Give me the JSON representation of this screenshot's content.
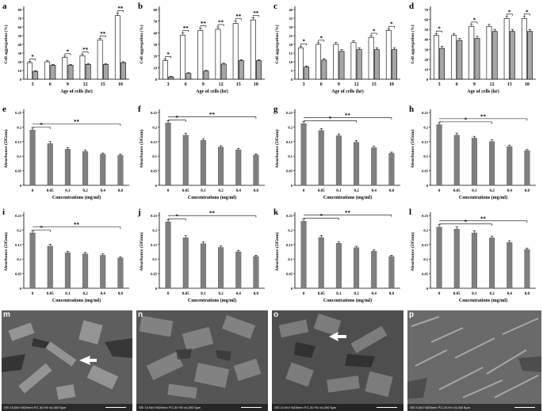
{
  "colors": {
    "open_bar": "#ffffff",
    "shaded_bar": "#a6a6a6",
    "mark_bar": "#7f7f7f",
    "axis": "#000000"
  },
  "chart_data": [
    {
      "panel": "a",
      "type": "bar",
      "ylabel": "Cell aggregation (%)",
      "xlabel": "Age of cells (hr)",
      "categories": [
        "3",
        "6",
        "9",
        "12",
        "15",
        "18"
      ],
      "ylim": [
        0,
        80
      ],
      "yticks": [
        0,
        10,
        20,
        30,
        40,
        50,
        60,
        70,
        80
      ],
      "series": [
        {
          "values": [
            19,
            20,
            25,
            27,
            45,
            73
          ],
          "errors": [
            1.5,
            1.2,
            1.5,
            1.5,
            2,
            3
          ]
        },
        {
          "values": [
            9,
            16,
            16,
            17,
            17,
            19
          ],
          "errors": [
            0.8,
            1,
            1,
            1,
            1,
            1
          ]
        }
      ],
      "sig": [
        "*",
        "",
        "*",
        "**",
        "**",
        "**"
      ]
    },
    {
      "panel": "b",
      "type": "bar",
      "ylabel": "Cell aggregation (%)",
      "xlabel": "Age of cells (hr)",
      "categories": [
        "3",
        "6",
        "9",
        "12",
        "15",
        "18"
      ],
      "ylim": [
        0,
        60
      ],
      "yticks": [
        0,
        10,
        20,
        30,
        40,
        50,
        60
      ],
      "series": [
        {
          "values": [
            16,
            38,
            42,
            43,
            48,
            51
          ],
          "errors": [
            1.5,
            2,
            2,
            2,
            2,
            2
          ]
        },
        {
          "values": [
            2,
            5,
            7,
            13,
            16,
            16
          ],
          "errors": [
            0.5,
            0.6,
            0.6,
            0.8,
            0.8,
            0.8
          ]
        }
      ],
      "sig": [
        "*",
        "**",
        "**",
        "**",
        "**",
        "**"
      ]
    },
    {
      "panel": "c",
      "type": "bar",
      "ylabel": "Cell aggregation (%)",
      "xlabel": "Age of cells (hr)",
      "categories": [
        "3",
        "6",
        "9",
        "12",
        "15",
        "18"
      ],
      "ylim": [
        0,
        40
      ],
      "yticks": [
        0,
        5,
        10,
        15,
        20,
        25,
        30,
        35,
        40
      ],
      "series": [
        {
          "values": [
            18,
            20,
            20,
            21,
            24,
            28
          ],
          "errors": [
            1,
            1,
            1,
            1,
            1,
            1
          ]
        },
        {
          "values": [
            7,
            11,
            16,
            17,
            17,
            17
          ],
          "errors": [
            0.6,
            0.8,
            1,
            1,
            1,
            1
          ]
        }
      ],
      "sig": [
        "*",
        "*",
        "",
        "",
        "*",
        "*"
      ]
    },
    {
      "panel": "d",
      "type": "bar",
      "ylabel": "Cell aggregation (%)",
      "xlabel": "Age of cells (hr)",
      "categories": [
        "3",
        "6",
        "9",
        "12",
        "15",
        "18"
      ],
      "ylim": [
        0,
        70
      ],
      "yticks": [
        0,
        10,
        20,
        30,
        40,
        50,
        60,
        70
      ],
      "series": [
        {
          "values": [
            44,
            44,
            53,
            53,
            61,
            61
          ],
          "errors": [
            2,
            2,
            2,
            2,
            2,
            2
          ]
        },
        {
          "values": [
            31,
            39,
            41,
            48,
            48,
            48
          ],
          "errors": [
            2,
            2,
            2,
            2,
            2,
            2
          ]
        }
      ],
      "sig": [
        "*",
        "",
        "*",
        "",
        "*",
        "*"
      ]
    },
    {
      "panel": "e",
      "type": "bar",
      "ylabel": "Absorbance (595nm)",
      "xlabel": "Concentrations (mg/ml)",
      "categories": [
        "0",
        "0.05",
        "0.1",
        "0.2",
        "0.4",
        "0.8"
      ],
      "ylim": [
        0,
        0.25
      ],
      "yticks": [
        0,
        0.05,
        0.1,
        0.15,
        0.2,
        0.25
      ],
      "values": [
        0.19,
        0.143,
        0.124,
        0.116,
        0.107,
        0.103
      ],
      "errors": [
        0.007,
        0.007,
        0.005,
        0.005,
        0.004,
        0.004
      ],
      "brackets": [
        {
          "from": 0,
          "to": 1,
          "label": "*"
        },
        {
          "from": 0,
          "to": 5,
          "label": "**"
        }
      ]
    },
    {
      "panel": "f",
      "type": "bar",
      "ylabel": "Absorbance (595nm)",
      "xlabel": "Concentrations (mg/ml)",
      "categories": [
        "0",
        "0.05",
        "0.1",
        "0.2",
        "0.4",
        "0.8"
      ],
      "ylim": [
        0,
        0.25
      ],
      "yticks": [
        0,
        0.05,
        0.1,
        0.15,
        0.2,
        0.25
      ],
      "values": [
        0.214,
        0.172,
        0.154,
        0.131,
        0.122,
        0.104
      ],
      "errors": [
        0.008,
        0.007,
        0.006,
        0.005,
        0.005,
        0.004
      ],
      "brackets": [
        {
          "from": 0,
          "to": 1,
          "label": "*"
        },
        {
          "from": 0,
          "to": 5,
          "label": "**"
        }
      ]
    },
    {
      "panel": "g",
      "type": "bar",
      "ylabel": "Absorbance (595nm)",
      "xlabel": "Concentrations (mg/ml)",
      "categories": [
        "0",
        "0.05",
        "0.1",
        "0.2",
        "0.4",
        "0.8"
      ],
      "ylim": [
        0,
        0.25
      ],
      "yticks": [
        0,
        0.05,
        0.1,
        0.15,
        0.2,
        0.25
      ],
      "values": [
        0.212,
        0.188,
        0.17,
        0.148,
        0.129,
        0.11
      ],
      "errors": [
        0.007,
        0.007,
        0.006,
        0.006,
        0.005,
        0.004
      ],
      "brackets": [
        {
          "from": 0,
          "to": 3,
          "label": "*"
        },
        {
          "from": 0,
          "to": 5,
          "label": "**"
        }
      ]
    },
    {
      "panel": "h",
      "type": "bar",
      "ylabel": "Absorbance (595nm)",
      "xlabel": "Concentrations (mg/ml)",
      "categories": [
        "0",
        "0.05",
        "0.1",
        "0.2",
        "0.4",
        "0.8"
      ],
      "ylim": [
        0,
        0.25
      ],
      "yticks": [
        0,
        0.05,
        0.1,
        0.15,
        0.2,
        0.25
      ],
      "values": [
        0.208,
        0.172,
        0.162,
        0.15,
        0.133,
        0.119
      ],
      "errors": [
        0.007,
        0.007,
        0.006,
        0.006,
        0.005,
        0.004
      ],
      "brackets": [
        {
          "from": 0,
          "to": 3,
          "label": "*"
        },
        {
          "from": 0,
          "to": 5,
          "label": "**"
        }
      ]
    },
    {
      "panel": "i",
      "type": "bar",
      "ylabel": "Absorbance (595nm)",
      "xlabel": "Concentrations (mg/ml)",
      "categories": [
        "0",
        "0.05",
        "0.1",
        "0.2",
        "0.4",
        "0.8"
      ],
      "ylim": [
        0,
        0.25
      ],
      "yticks": [
        0,
        0.05,
        0.1,
        0.15,
        0.2,
        0.25
      ],
      "values": [
        0.19,
        0.145,
        0.122,
        0.118,
        0.113,
        0.104
      ],
      "errors": [
        0.007,
        0.006,
        0.005,
        0.005,
        0.005,
        0.004
      ],
      "brackets": [
        {
          "from": 0,
          "to": 1,
          "label": "*"
        },
        {
          "from": 0,
          "to": 5,
          "label": "**"
        }
      ]
    },
    {
      "panel": "j",
      "type": "bar",
      "ylabel": "Absorbance (595nm)",
      "xlabel": "Concentrations (mg/ml)",
      "categories": [
        "0",
        "0.05",
        "0.1",
        "0.2",
        "0.4",
        "0.8"
      ],
      "ylim": [
        0,
        0.25
      ],
      "yticks": [
        0,
        0.05,
        0.1,
        0.15,
        0.2,
        0.25
      ],
      "values": [
        0.228,
        0.173,
        0.153,
        0.14,
        0.125,
        0.109
      ],
      "errors": [
        0.008,
        0.007,
        0.006,
        0.005,
        0.005,
        0.004
      ],
      "brackets": [
        {
          "from": 0,
          "to": 1,
          "label": "*"
        },
        {
          "from": 0,
          "to": 5,
          "label": "**"
        }
      ]
    },
    {
      "panel": "k",
      "type": "bar",
      "ylabel": "Absorbance (595nm)",
      "xlabel": "Concentrations (mg/ml)",
      "categories": [
        "0",
        "0.05",
        "0.1",
        "0.2",
        "0.4",
        "0.8"
      ],
      "ylim": [
        0,
        0.25
      ],
      "yticks": [
        0,
        0.05,
        0.1,
        0.15,
        0.2,
        0.25
      ],
      "values": [
        0.23,
        0.174,
        0.154,
        0.139,
        0.127,
        0.109
      ],
      "errors": [
        0.008,
        0.007,
        0.006,
        0.005,
        0.005,
        0.004
      ],
      "brackets": [
        {
          "from": 0,
          "to": 2,
          "label": "*"
        },
        {
          "from": 0,
          "to": 5,
          "label": "**"
        }
      ]
    },
    {
      "panel": "l",
      "type": "bar",
      "ylabel": "Absorbance (595nm)",
      "xlabel": "Concentrations (mg/ml)",
      "categories": [
        "0",
        "0.05",
        "0.1",
        "0.2",
        "0.4",
        "0.8"
      ],
      "ylim": [
        0,
        0.25
      ],
      "yticks": [
        0,
        0.05,
        0.1,
        0.15,
        0.2,
        0.25
      ],
      "values": [
        0.21,
        0.203,
        0.19,
        0.173,
        0.157,
        0.133
      ],
      "errors": [
        0.008,
        0.007,
        0.007,
        0.006,
        0.006,
        0.005
      ],
      "brackets": [
        {
          "from": 0,
          "to": 3,
          "label": "*"
        },
        {
          "from": 0,
          "to": 5,
          "label": "**"
        }
      ]
    }
  ],
  "micrographs": [
    {
      "panel": "m",
      "info": "SEI 10.0kV WD9mm P.C.30 HV x4,000 5µm",
      "arrow": true
    },
    {
      "panel": "n",
      "info": "SEI 10.0kV WD9mm P.C.30 HV x4,000 5µm",
      "arrow": false
    },
    {
      "panel": "o",
      "info": "SEI 10.0kV WD9mm P.C.30 HV x4,000 5µm",
      "arrow": true
    },
    {
      "panel": "p",
      "info": "SEI 5.0kV WD9mm P.C.24 HV x3,000 5µm",
      "arrow": false
    }
  ]
}
